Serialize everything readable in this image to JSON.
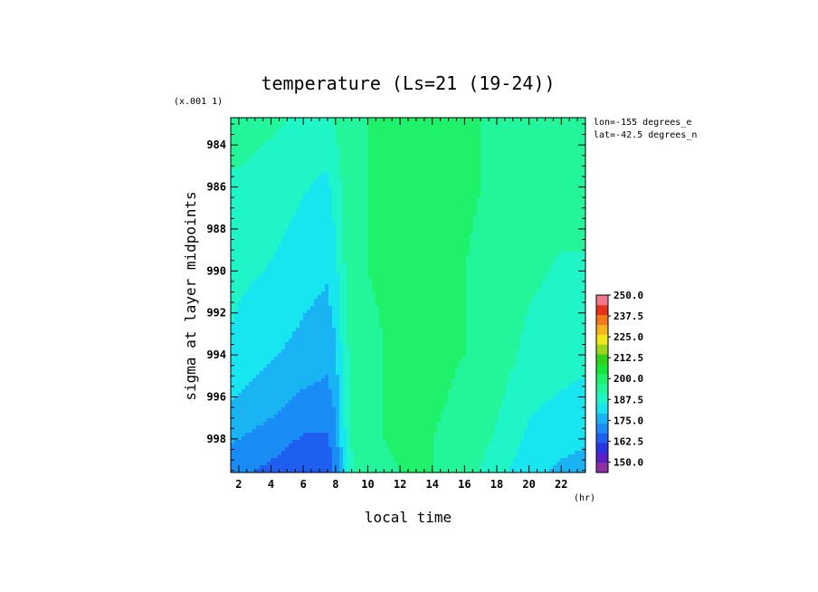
{
  "chart_data": {
    "type": "heatmap",
    "title": "temperature (Ls=21 (19-24))",
    "xlabel": "local time",
    "x_unit": "(hr)",
    "ylabel": "sigma at layer midpoints",
    "y_scale_note": "(x.001 1)",
    "annotations": [
      "lon=-155 degrees_e",
      "lat=-42.5 degrees_n"
    ],
    "xlim": [
      1.5,
      23.5
    ],
    "ylim": [
      982.7,
      999.6
    ],
    "y_inverted": true,
    "x_ticks": [
      "2",
      "4",
      "6",
      "8",
      "10",
      "12",
      "14",
      "16",
      "18",
      "20",
      "22"
    ],
    "y_ticks": [
      "984",
      "986",
      "988",
      "990",
      "992",
      "994",
      "996",
      "998"
    ],
    "x": [
      1.5,
      2,
      4,
      6,
      7.5,
      8,
      8.5,
      9,
      10,
      12,
      14,
      16,
      18,
      20,
      22,
      23.5
    ],
    "y": [
      982.7,
      986,
      990,
      994,
      996,
      998,
      999.6
    ],
    "values": [
      [
        196,
        196,
        195,
        193,
        192,
        195,
        197,
        199,
        200,
        201,
        201,
        201,
        199,
        198,
        197,
        197
      ],
      [
        193,
        193,
        191,
        188,
        186,
        190,
        195,
        198,
        200,
        201,
        201,
        201,
        199,
        197,
        196,
        196
      ],
      [
        190,
        189,
        187,
        184,
        182,
        186,
        193,
        197,
        200,
        201,
        201,
        200,
        198,
        195,
        193,
        193
      ],
      [
        186,
        185,
        182,
        179,
        177,
        180,
        190,
        196,
        199,
        201,
        201,
        200,
        197,
        192,
        190,
        189
      ],
      [
        182,
        181,
        178,
        174,
        173,
        177,
        188,
        195,
        199,
        201,
        201,
        199,
        195,
        189,
        187,
        186
      ],
      [
        176,
        175,
        172,
        168,
        168,
        172,
        186,
        194,
        199,
        201,
        200,
        198,
        193,
        186,
        183,
        182
      ],
      [
        171,
        170,
        167,
        163,
        164,
        170,
        184,
        193,
        198,
        200,
        200,
        197,
        190,
        183,
        180,
        179
      ]
    ],
    "colorbar": {
      "min": 143.75,
      "max": 250,
      "step": 6.25,
      "labels": [
        "250.0",
        "237.5",
        "225.0",
        "212.5",
        "200.0",
        "187.5",
        "175.0",
        "162.5",
        "150.0"
      ],
      "colors": [
        "#8f2fa6",
        "#5a1fc8",
        "#2a33e6",
        "#1f5ff0",
        "#1a8cf5",
        "#1ab4f5",
        "#17e6f0",
        "#20f5c8",
        "#22f59a",
        "#1ff26a",
        "#15e63a",
        "#33d21a",
        "#9ad61a",
        "#f0e61a",
        "#f5b41a",
        "#f5781a",
        "#e6321a",
        "#f07a8c"
      ]
    }
  }
}
